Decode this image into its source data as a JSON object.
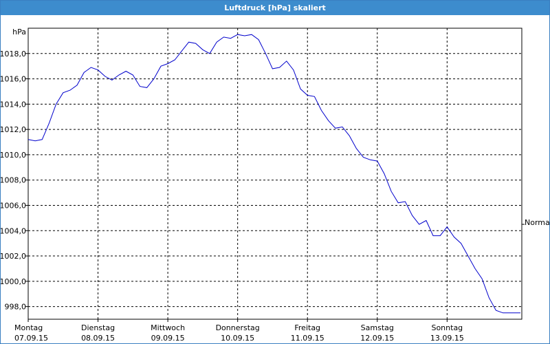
{
  "window": {
    "title": "Luftdruck [hPa] skaliert"
  },
  "chart_data": {
    "type": "line",
    "title": "Luftdruck [hPa] skaliert",
    "ylabel": "hPa",
    "ylim": [
      997,
      1020
    ],
    "yticks": [
      "998,0",
      "1000,0",
      "1002,0",
      "1004,0",
      "1006,0",
      "1008,0",
      "1010,0",
      "1012,0",
      "1014,0",
      "1016,0",
      "1018,0"
    ],
    "ytick_values": [
      998,
      1000,
      1002,
      1004,
      1006,
      1008,
      1010,
      1012,
      1014,
      1016,
      1018
    ],
    "xlim": [
      0,
      7.07
    ],
    "x_categories": [
      {
        "day": "Montag",
        "date": "07.09.15"
      },
      {
        "day": "Dienstag",
        "date": "08.09.15"
      },
      {
        "day": "Mittwoch",
        "date": "09.09.15"
      },
      {
        "day": "Donnerstag",
        "date": "10.09.15"
      },
      {
        "day": "Freitag",
        "date": "11.09.15"
      },
      {
        "day": "Samstag",
        "date": "12.09.15"
      },
      {
        "day": "Sonntag",
        "date": "13.09.15"
      }
    ],
    "reference_label": "Normal",
    "reference_value": 1004.5,
    "grid": true,
    "line_color": "#0000cc",
    "series": [
      {
        "x": [
          0,
          0.1,
          0.2,
          0.3,
          0.4,
          0.5,
          0.6,
          0.7,
          0.8,
          0.9,
          1.0,
          1.1,
          1.2,
          1.3,
          1.4,
          1.5,
          1.6,
          1.7,
          1.8,
          1.9,
          2.0,
          2.1,
          2.2,
          2.3,
          2.4,
          2.5,
          2.6,
          2.7,
          2.8,
          2.9,
          3.0,
          3.1,
          3.2,
          3.3,
          3.4,
          3.5,
          3.6,
          3.7,
          3.8,
          3.9,
          4.0,
          4.1,
          4.2,
          4.3,
          4.4,
          4.5,
          4.6,
          4.7,
          4.8,
          4.9,
          5.0,
          5.1,
          5.2,
          5.3,
          5.4,
          5.5,
          5.6,
          5.7,
          5.8,
          5.9,
          6.0,
          6.1,
          6.2,
          6.3,
          6.4,
          6.5,
          6.6,
          6.7,
          6.8,
          6.9,
          7.0,
          7.05
        ],
        "values": [
          1011.2,
          1011.1,
          1011.2,
          1012.5,
          1014.0,
          1014.9,
          1015.1,
          1015.5,
          1016.5,
          1016.9,
          1016.7,
          1016.2,
          1015.9,
          1016.3,
          1016.6,
          1016.3,
          1015.4,
          1015.3,
          1016.0,
          1017.0,
          1017.2,
          1017.5,
          1018.2,
          1018.9,
          1018.8,
          1018.3,
          1018.0,
          1018.9,
          1019.3,
          1019.2,
          1019.5,
          1019.4,
          1019.5,
          1019.1,
          1018.0,
          1016.8,
          1016.9,
          1017.4,
          1016.7,
          1015.2,
          1014.7,
          1014.6,
          1013.5,
          1012.7,
          1012.1,
          1012.2,
          1011.5,
          1010.5,
          1009.8,
          1009.6,
          1009.5,
          1008.5,
          1007.1,
          1006.2,
          1006.3,
          1005.2,
          1004.5,
          1004.8,
          1003.6,
          1003.6,
          1004.3,
          1003.5,
          1003.0,
          1002.0,
          1001.0,
          1000.2,
          998.7,
          997.7,
          997.5,
          997.5,
          997.5,
          997.5
        ]
      }
    ]
  }
}
